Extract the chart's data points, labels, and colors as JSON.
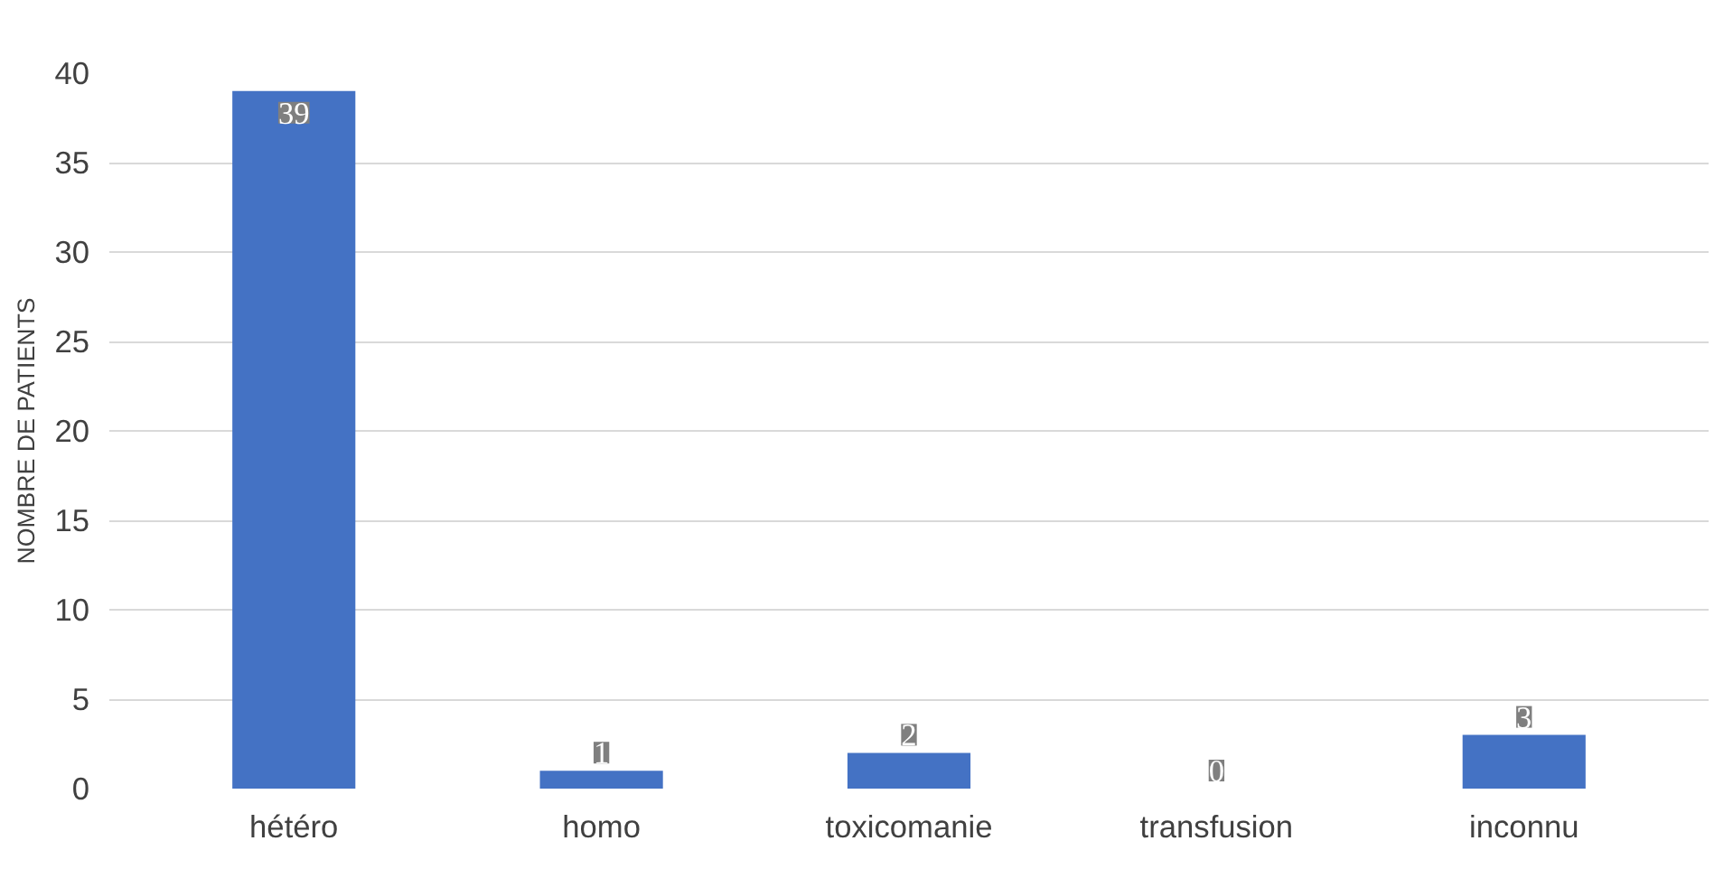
{
  "chart_data": {
    "type": "bar",
    "ylabel": "NOMBRE DE PATIENTS",
    "categories": [
      "hétéro",
      "homo",
      "toxicomanie",
      "transfusion",
      "inconnu"
    ],
    "values": [
      39,
      1,
      2,
      0,
      3
    ],
    "color": "#4472c4",
    "ylim": [
      0,
      40
    ],
    "yticks": [
      0,
      5,
      10,
      15,
      20,
      25,
      30,
      35,
      40
    ],
    "grid": "y",
    "data_labels": true
  }
}
